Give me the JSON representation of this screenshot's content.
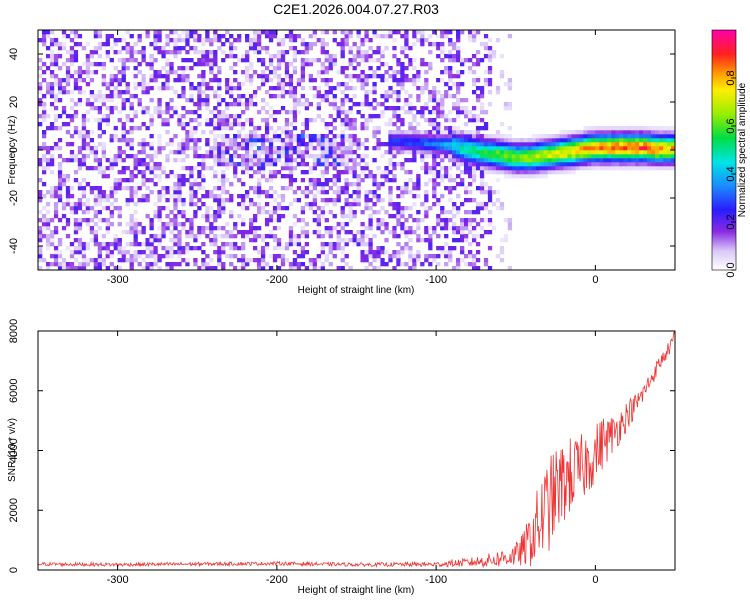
{
  "title": "C2E1.2026.004.07.27.R03",
  "chart_data": [
    {
      "type": "heatmap",
      "xlabel": "Height of straight line (km)",
      "ylabel": "Frequency (Hz)",
      "xlim": [
        -350,
        50
      ],
      "ylim": [
        -50,
        50
      ],
      "xticks": [
        -300,
        -200,
        -100,
        0
      ],
      "xtick_labels": [
        "-300",
        "-200",
        "-100",
        "0"
      ],
      "yticks": [
        -40,
        -20,
        0,
        20,
        40
      ],
      "ytick_labels": [
        "-40",
        "-20",
        "0",
        "20",
        "40"
      ],
      "colorbar": {
        "label": "Normalized spectral amplitude",
        "range": [
          0,
          1
        ],
        "ticks": [
          0.0,
          0.2,
          0.4,
          0.6,
          0.8
        ],
        "tick_labels": [
          "0.0",
          "0.2",
          "0.4",
          "0.6",
          "0.8"
        ],
        "colormap": "white-violet-blue-cyan-green-yellow-red-magenta"
      },
      "ridge": {
        "x": [
          -130,
          -110,
          -90,
          -80,
          -70,
          -60,
          -50,
          -40,
          -30,
          -20,
          -10,
          0,
          10,
          20,
          30,
          40,
          50
        ],
        "frequency": [
          4,
          3,
          2,
          0,
          -1,
          -2,
          -3,
          -3,
          -2,
          -1,
          0,
          1,
          1,
          1,
          1,
          0.5,
          0.5
        ],
        "amplitude": [
          0.28,
          0.32,
          0.45,
          0.55,
          0.6,
          0.65,
          0.68,
          0.72,
          0.75,
          0.8,
          0.85,
          0.9,
          0.92,
          0.95,
          0.95,
          0.9,
          0.85
        ]
      },
      "noise_extent_x": [
        -350,
        -65
      ],
      "noise_amplitude_max": 0.22
    },
    {
      "type": "line",
      "xlabel": "Height of straight line (km)",
      "ylabel": "SNR (10 * v/v)",
      "xlim": [
        -350,
        50
      ],
      "ylim": [
        0,
        8000
      ],
      "xticks": [
        -300,
        -200,
        -100,
        0
      ],
      "xtick_labels": [
        "-300",
        "-200",
        "-100",
        "0"
      ],
      "yticks": [
        0,
        2000,
        4000,
        6000,
        8000
      ],
      "ytick_labels": [
        "0",
        "2000",
        "4000",
        "6000",
        "8000"
      ],
      "color": "#ee3333",
      "series": [
        {
          "name": "SNR",
          "x": [
            -350,
            -300,
            -250,
            -200,
            -150,
            -100,
            -80,
            -70,
            -60,
            -50,
            -45,
            -40,
            -35,
            -30,
            -25,
            -20,
            -15,
            -10,
            -5,
            0,
            5,
            10,
            15,
            20,
            25,
            30,
            35,
            40,
            45,
            50
          ],
          "values": [
            200,
            180,
            200,
            220,
            180,
            190,
            250,
            300,
            380,
            500,
            700,
            1100,
            1600,
            2100,
            2600,
            2900,
            3200,
            3300,
            3600,
            3900,
            4300,
            4500,
            4800,
            5200,
            5500,
            5900,
            6400,
            6900,
            7300,
            7800
          ],
          "noise_amplitude": [
            60,
            60,
            60,
            60,
            60,
            80,
            150,
            200,
            300,
            400,
            600,
            1000,
            1400,
            1600,
            1500,
            1400,
            1300,
            1200,
            1100,
            1000,
            900,
            700,
            600,
            500,
            400,
            350,
            300,
            250,
            250,
            250
          ]
        }
      ]
    }
  ]
}
